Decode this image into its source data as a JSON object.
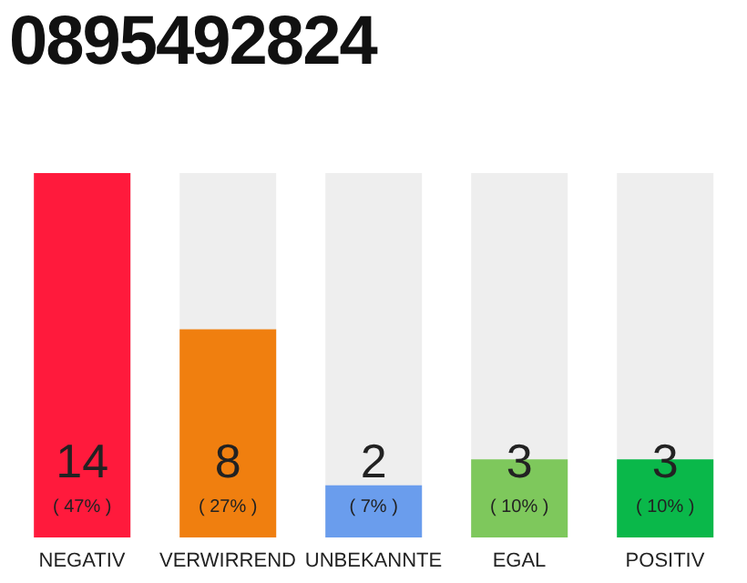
{
  "chart_data": {
    "type": "bar",
    "title": "0895492824",
    "categories": [
      "NEGATIV",
      "VERWIRREND",
      "UNBEKANNTE",
      "EGAL",
      "POSITIV"
    ],
    "values": [
      14,
      8,
      2,
      3,
      3
    ],
    "colors": [
      "#ff1a3c",
      "#f07f0f",
      "#6a9ded",
      "#7ec85c",
      "#0ab84a"
    ],
    "data_labels": true,
    "annotations": [
      "( 47% )",
      "( 27% )",
      "( 7% )",
      "( 10% )",
      "( 10% )"
    ]
  }
}
